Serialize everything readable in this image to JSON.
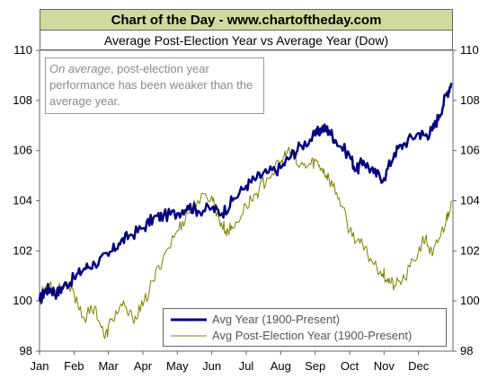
{
  "header": {
    "title": "Chart of the Day - www.chartoftheday.com",
    "subtitle": "Average Post-Election Year vs Average Year (Dow)"
  },
  "annotation": {
    "italic": "On average",
    "rest": ", post-election year performance has been weaker than the average year."
  },
  "chart_data": {
    "type": "line",
    "title": "Average Post-Election Year vs Average Year (Dow)",
    "x_categories": [
      "Jan",
      "Feb",
      "Mar",
      "Apr",
      "May",
      "Jun",
      "Jul",
      "Aug",
      "Sep",
      "Oct",
      "Nov",
      "Dec"
    ],
    "ylim": [
      98,
      110
    ],
    "y_ticks": [
      "98",
      "100",
      "102",
      "104",
      "106",
      "108",
      "110"
    ],
    "grid": false,
    "legend_position": "bottom-right",
    "series": [
      {
        "name": "Avg Year (1900-Present)",
        "color": "#000080",
        "points": [
          [
            0.0,
            100.0
          ],
          [
            0.15,
            100.4
          ],
          [
            0.3,
            100.5
          ],
          [
            0.5,
            100.3
          ],
          [
            0.7,
            100.6
          ],
          [
            1.0,
            100.9
          ],
          [
            1.3,
            101.3
          ],
          [
            1.6,
            101.5
          ],
          [
            2.0,
            101.8
          ],
          [
            2.3,
            102.3
          ],
          [
            2.6,
            102.6
          ],
          [
            3.0,
            102.9
          ],
          [
            3.3,
            103.3
          ],
          [
            3.6,
            103.4
          ],
          [
            4.0,
            103.5
          ],
          [
            4.3,
            103.8
          ],
          [
            4.6,
            103.6
          ],
          [
            5.0,
            103.7
          ],
          [
            5.3,
            103.5
          ],
          [
            5.6,
            104.0
          ],
          [
            6.0,
            104.6
          ],
          [
            6.3,
            104.9
          ],
          [
            6.6,
            105.1
          ],
          [
            7.0,
            105.3
          ],
          [
            7.3,
            105.8
          ],
          [
            7.6,
            106.2
          ],
          [
            8.0,
            106.6
          ],
          [
            8.2,
            106.9
          ],
          [
            8.4,
            106.8
          ],
          [
            8.6,
            106.4
          ],
          [
            9.0,
            105.8
          ],
          [
            9.2,
            105.2
          ],
          [
            9.4,
            105.6
          ],
          [
            9.7,
            105.1
          ],
          [
            10.0,
            104.9
          ],
          [
            10.3,
            105.9
          ],
          [
            10.6,
            106.3
          ],
          [
            11.0,
            106.7
          ],
          [
            11.2,
            106.6
          ],
          [
            11.4,
            106.8
          ],
          [
            11.6,
            107.4
          ],
          [
            11.8,
            108.2
          ],
          [
            11.95,
            108.7
          ]
        ]
      },
      {
        "name": "Avg Post-Election Year (1900-Present)",
        "color": "#808000",
        "points": [
          [
            0.0,
            100.0
          ],
          [
            0.15,
            100.5
          ],
          [
            0.3,
            100.7
          ],
          [
            0.5,
            100.4
          ],
          [
            0.7,
            100.6
          ],
          [
            1.0,
            100.3
          ],
          [
            1.3,
            99.3
          ],
          [
            1.6,
            99.8
          ],
          [
            1.9,
            98.5
          ],
          [
            2.1,
            99.3
          ],
          [
            2.4,
            99.8
          ],
          [
            2.7,
            99.3
          ],
          [
            3.0,
            99.8
          ],
          [
            3.3,
            100.8
          ],
          [
            3.6,
            101.8
          ],
          [
            4.0,
            102.8
          ],
          [
            4.3,
            103.5
          ],
          [
            4.6,
            104.0
          ],
          [
            5.0,
            104.2
          ],
          [
            5.2,
            103.3
          ],
          [
            5.4,
            102.8
          ],
          [
            5.6,
            102.9
          ],
          [
            6.0,
            103.8
          ],
          [
            6.3,
            104.3
          ],
          [
            6.6,
            104.9
          ],
          [
            7.0,
            105.5
          ],
          [
            7.2,
            106.0
          ],
          [
            7.5,
            105.4
          ],
          [
            7.8,
            105.4
          ],
          [
            8.0,
            105.6
          ],
          [
            8.2,
            105.3
          ],
          [
            8.4,
            104.9
          ],
          [
            8.7,
            104.1
          ],
          [
            9.0,
            102.8
          ],
          [
            9.3,
            102.3
          ],
          [
            9.6,
            101.7
          ],
          [
            9.9,
            101.2
          ],
          [
            10.1,
            100.9
          ],
          [
            10.3,
            100.6
          ],
          [
            10.6,
            100.9
          ],
          [
            11.0,
            102.0
          ],
          [
            11.2,
            102.5
          ],
          [
            11.4,
            101.8
          ],
          [
            11.6,
            102.5
          ],
          [
            11.8,
            103.2
          ],
          [
            11.95,
            104.0
          ]
        ]
      }
    ]
  }
}
